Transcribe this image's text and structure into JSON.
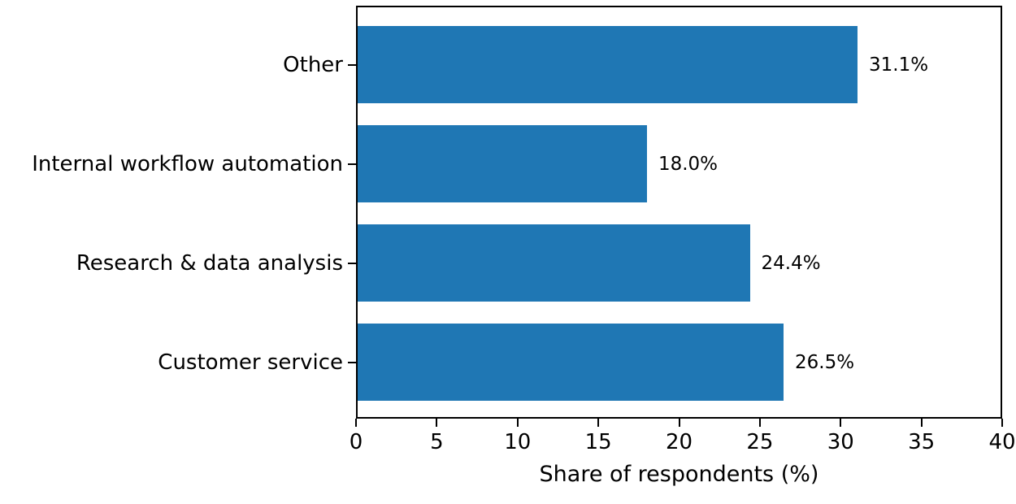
{
  "chart_data": {
    "type": "bar",
    "orientation": "horizontal",
    "categories": [
      "Other",
      "Internal workflow automation",
      "Research & data analysis",
      "Customer service"
    ],
    "values": [
      31.1,
      18.0,
      24.4,
      26.5
    ],
    "value_labels": [
      "31.1%",
      "18.0%",
      "24.4%",
      "26.5%"
    ],
    "xlabel": "Share of respondents (%)",
    "xlim": [
      0,
      40
    ],
    "xticks": [
      "0",
      "5",
      "10",
      "15",
      "20",
      "25",
      "30",
      "35",
      "40"
    ],
    "bar_color": "#1f77b4",
    "axis_color": "#000000",
    "text_color": "#000000",
    "grid": false,
    "legend_position": "none"
  }
}
